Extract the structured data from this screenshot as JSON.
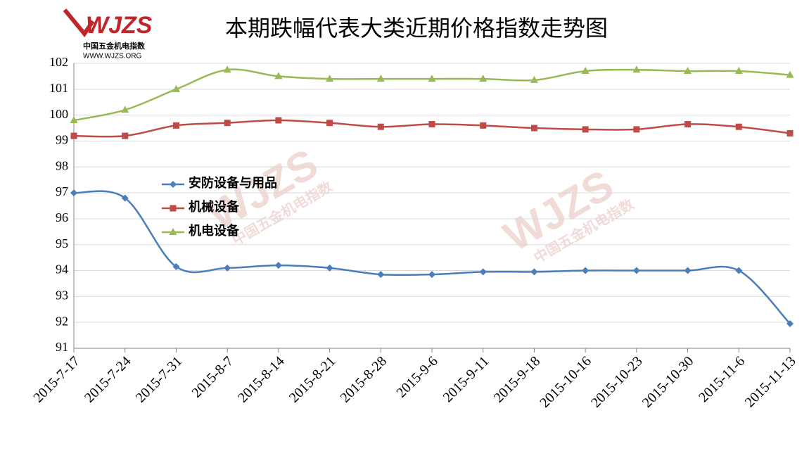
{
  "logo": {
    "mark": "WJZS",
    "name": "中国五金机电指数",
    "url": "WWW.WJZS.ORG"
  },
  "chart_data": {
    "type": "line",
    "title": "本期跌幅代表大类近期价格指数走势图",
    "categories": [
      "2015-7-17",
      "2015-7-24",
      "2015-7-31",
      "2015-8-7",
      "2015-8-14",
      "2015-8-21",
      "2015-8-28",
      "2015-9-6",
      "2015-9-11",
      "2015-9-18",
      "2015-10-16",
      "2015-10-23",
      "2015-10-30",
      "2015-11-6",
      "2015-11-13"
    ],
    "series": [
      {
        "name": "安防设备与用品",
        "color": "#4a7ebb",
        "marker": "diamond",
        "values": [
          97.0,
          96.8,
          94.15,
          94.1,
          94.2,
          94.1,
          93.85,
          93.85,
          93.95,
          93.95,
          94.0,
          94.0,
          94.0,
          94.0,
          91.95
        ]
      },
      {
        "name": "机械设备",
        "color": "#be4b48",
        "marker": "square",
        "values": [
          99.2,
          99.2,
          99.6,
          99.7,
          99.8,
          99.7,
          99.55,
          99.65,
          99.6,
          99.5,
          99.45,
          99.45,
          99.65,
          99.55,
          99.3
        ]
      },
      {
        "name": "机电设备",
        "color": "#98b954",
        "marker": "triangle",
        "values": [
          99.8,
          100.2,
          101.0,
          101.75,
          101.5,
          101.4,
          101.4,
          101.4,
          101.4,
          101.35,
          101.7,
          101.75,
          101.7,
          101.7,
          101.55
        ]
      }
    ],
    "ylim": [
      91,
      102
    ],
    "yticks": [
      91,
      92,
      93,
      94,
      95,
      96,
      97,
      98,
      99,
      100,
      101,
      102
    ],
    "grid": true,
    "smooth": true
  }
}
